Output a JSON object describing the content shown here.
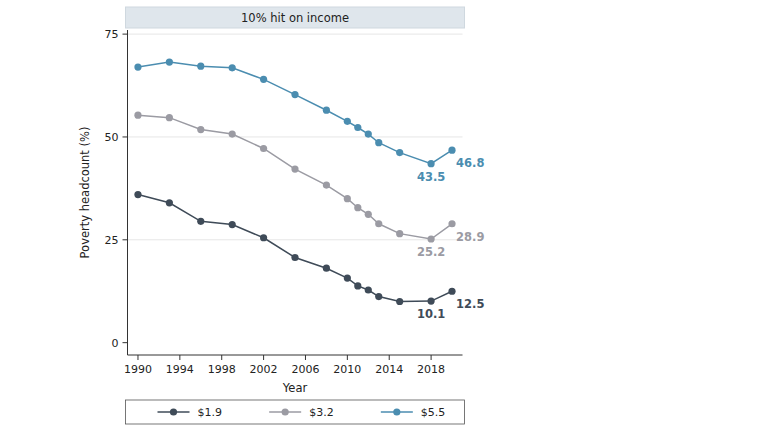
{
  "chart_data": {
    "type": "line",
    "title": "10% hit on income",
    "x_label": "Year",
    "y_label": "Poverty headcount (%)",
    "x": [
      1990,
      1993,
      1996,
      1999,
      2002,
      2005,
      2008,
      2010,
      2011,
      2012,
      2013,
      2015,
      2018,
      2020
    ],
    "xlim": [
      1989,
      2021
    ],
    "xticks": [
      1990,
      1994,
      1998,
      2002,
      2006,
      2010,
      2014,
      2018
    ],
    "ylim": [
      -3,
      76
    ],
    "yticks": [
      0,
      25,
      50,
      75
    ],
    "grid": true,
    "legend": "bottom",
    "marker": "circle",
    "series": [
      {
        "name": "$1.9",
        "color": "#3f4b58",
        "values": [
          36.0,
          34.0,
          29.5,
          28.7,
          25.5,
          20.7,
          18.1,
          15.7,
          13.8,
          12.8,
          11.2,
          10.0,
          10.1,
          12.5
        ],
        "value_labels": [
          null,
          null,
          null,
          null,
          null,
          null,
          null,
          null,
          null,
          null,
          null,
          null,
          "10.1",
          "12.5"
        ]
      },
      {
        "name": "$3.2",
        "color": "#9b9ba3",
        "values": [
          55.3,
          54.7,
          51.8,
          50.7,
          47.2,
          42.2,
          38.3,
          35.0,
          32.8,
          31.2,
          28.9,
          26.5,
          25.2,
          28.9
        ],
        "value_labels": [
          null,
          null,
          null,
          null,
          null,
          null,
          null,
          null,
          null,
          null,
          null,
          null,
          "25.2",
          "28.9"
        ]
      },
      {
        "name": "$5.5",
        "color": "#4b8db0",
        "values": [
          67.0,
          68.2,
          67.2,
          66.8,
          64.0,
          60.3,
          56.5,
          53.8,
          52.3,
          50.7,
          48.6,
          46.2,
          43.5,
          46.8
        ],
        "value_labels": [
          null,
          null,
          null,
          null,
          null,
          null,
          null,
          null,
          null,
          null,
          null,
          null,
          "43.5",
          "46.8"
        ]
      }
    ]
  }
}
